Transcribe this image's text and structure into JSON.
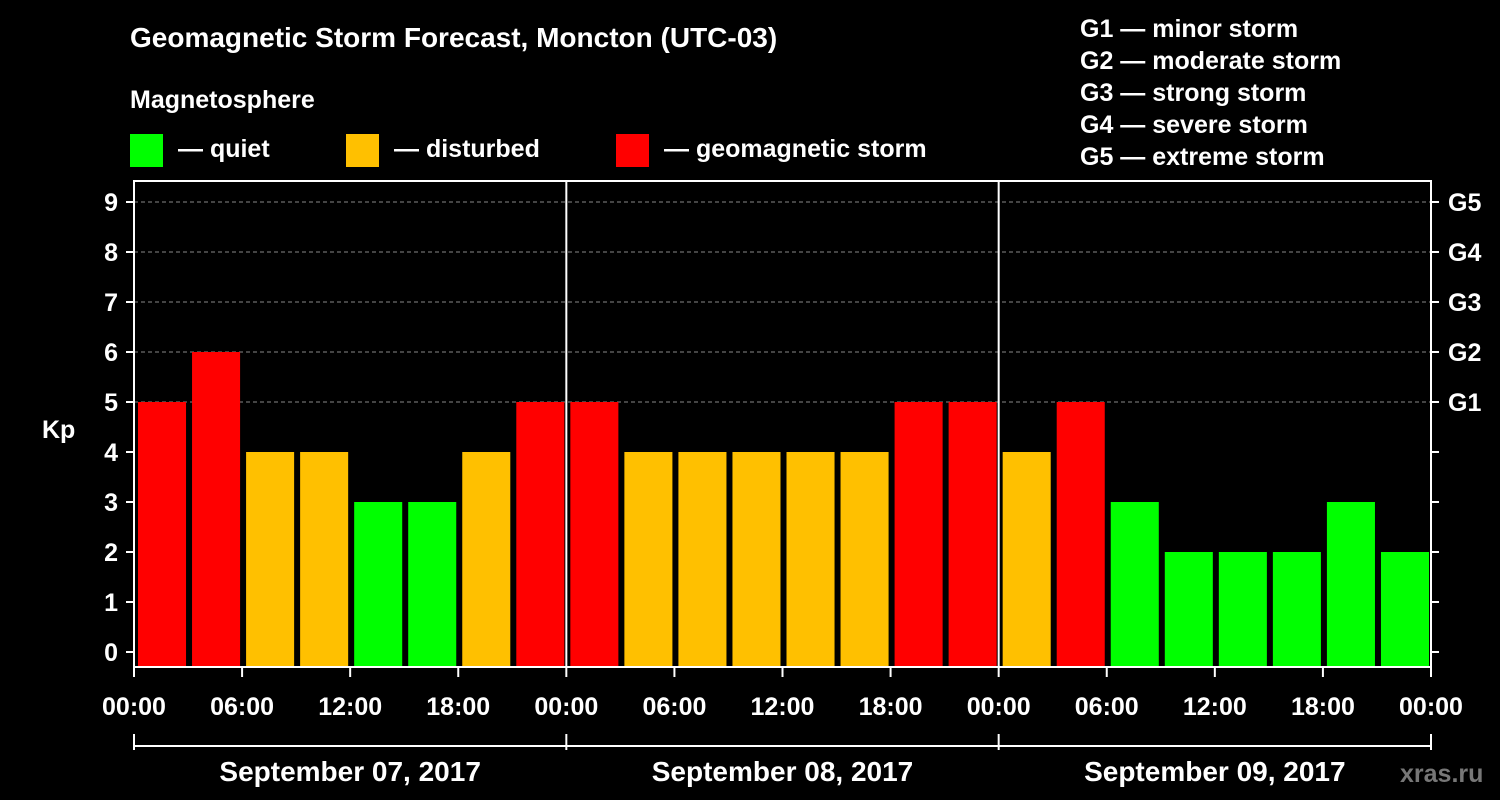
{
  "header": {
    "title": "Geomagnetic Storm Forecast, Moncton (UTC-03)",
    "subtitle": "Magnetosphere"
  },
  "legend": {
    "items": [
      {
        "label": "— quiet",
        "color": "#00ff00"
      },
      {
        "label": "— disturbed",
        "color": "#ffc000"
      },
      {
        "label": "— geomagnetic storm",
        "color": "#ff0000"
      }
    ]
  },
  "storm_scale": [
    "G1 — minor storm",
    "G2 — moderate storm",
    "G3 — strong storm",
    "G4 — severe storm",
    "G5 — extreme storm"
  ],
  "watermark": "xras.ru",
  "chart_data": {
    "type": "bar",
    "title": "Geomagnetic Storm Forecast, Moncton (UTC-03)",
    "ylabel": "Kp",
    "ylim": [
      0,
      9
    ],
    "yticks": [
      0,
      1,
      2,
      3,
      4,
      5,
      6,
      7,
      8,
      9
    ],
    "right_axis_labels": [
      {
        "kp": 5,
        "label": "G1"
      },
      {
        "kp": 6,
        "label": "G2"
      },
      {
        "kp": 7,
        "label": "G3"
      },
      {
        "kp": 8,
        "label": "G4"
      },
      {
        "kp": 9,
        "label": "G5"
      }
    ],
    "xtick_labels": [
      "00:00",
      "06:00",
      "12:00",
      "18:00",
      "00:00",
      "06:00",
      "12:00",
      "18:00",
      "00:00",
      "06:00",
      "12:00",
      "18:00",
      "00:00"
    ],
    "days": [
      "September 07, 2017",
      "September 08, 2017",
      "September 09, 2017"
    ],
    "interval_hours": 3,
    "values": [
      5,
      6,
      4,
      4,
      3,
      3,
      4,
      5,
      5,
      4,
      4,
      4,
      4,
      4,
      5,
      5,
      4,
      5,
      3,
      2,
      2,
      2,
      3,
      2
    ],
    "color_rules": {
      "quiet_max": 3,
      "disturbed_max": 4
    },
    "colors": {
      "quiet": "#00ff00",
      "disturbed": "#ffc000",
      "storm": "#ff0000"
    }
  }
}
